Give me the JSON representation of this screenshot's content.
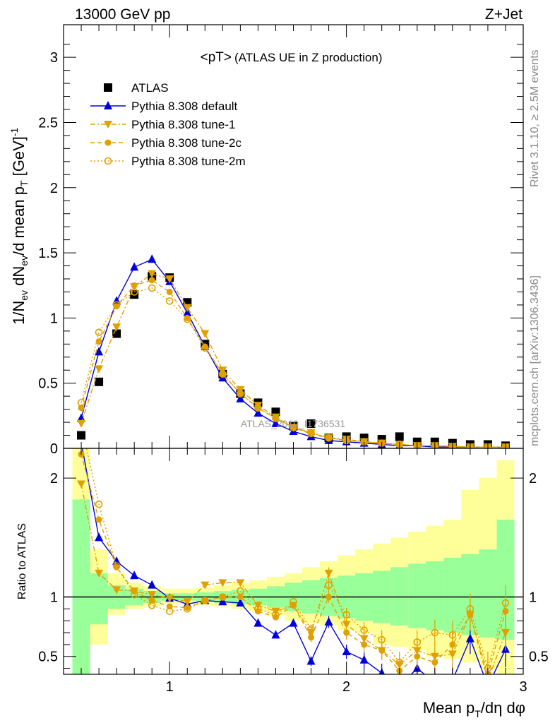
{
  "header": {
    "left": "13000 GeV pp",
    "right": "Z+Jet",
    "side_top": "Rivet 3.1.10, ≥ 2.5M events",
    "side_bottom": "mcplots.cern.ch [arXiv:1306.3436]"
  },
  "chart_data": [
    {
      "type": "scatter",
      "panel": "main",
      "title": "<pT>",
      "subtitle": "(ATLAS UE in Z production)",
      "watermark": "ATLAS_2019_I1736531",
      "xlabel": "Mean p_T/dη dφ",
      "ylabel": "1/N_ev dN_ev/d mean p_T [GeV]^-1",
      "xlim": [
        0.4,
        3.0
      ],
      "ylim": [
        0,
        3.25
      ],
      "x_ticks": [
        "1",
        "2",
        "3"
      ],
      "y_ticks": [
        "0",
        "0.5",
        "1",
        "1.5",
        "2",
        "2.5",
        "3"
      ],
      "x": [
        0.5,
        0.6,
        0.7,
        0.8,
        0.9,
        1.0,
        1.1,
        1.2,
        1.3,
        1.4,
        1.5,
        1.6,
        1.7,
        1.8,
        1.9,
        2.0,
        2.1,
        2.2,
        2.3,
        2.4,
        2.5,
        2.6,
        2.7,
        2.8,
        2.9
      ],
      "legend_position": "top-left",
      "series": [
        {
          "name": "ATLAS",
          "color": "#000000",
          "marker": "square",
          "line": "none",
          "values": [
            0.1,
            0.51,
            0.88,
            1.18,
            1.32,
            1.31,
            1.12,
            0.8,
            0.57,
            0.42,
            0.35,
            0.28,
            0.17,
            0.19,
            0.08,
            0.09,
            0.08,
            0.07,
            0.09,
            0.05,
            0.05,
            0.04,
            0.03,
            0.03,
            0.02
          ]
        },
        {
          "name": "Pythia 8.308 default",
          "color": "#0000dd",
          "marker": "triangle-up",
          "line": "solid",
          "values": [
            0.23,
            0.74,
            1.13,
            1.39,
            1.45,
            1.28,
            1.04,
            0.78,
            0.54,
            0.38,
            0.27,
            0.19,
            0.13,
            0.09,
            0.06,
            0.05,
            0.04,
            0.03,
            0.02,
            0.02,
            0.01,
            0.01,
            0.01,
            0.01,
            0.01
          ]
        },
        {
          "name": "Pythia 8.308 tune-1",
          "color": "#e0a000",
          "marker": "triangle-down",
          "line": "dashdot",
          "values": [
            0.19,
            0.61,
            0.93,
            1.24,
            1.34,
            1.3,
            1.08,
            0.88,
            0.6,
            0.45,
            0.33,
            0.24,
            0.16,
            0.12,
            0.08,
            0.07,
            0.05,
            0.04,
            0.03,
            0.02,
            0.02,
            0.015,
            0.01,
            0.01,
            0.01
          ]
        },
        {
          "name": "Pythia 8.308 tune-2c",
          "color": "#e0a000",
          "marker": "circle",
          "line": "dashed",
          "values": [
            0.31,
            0.82,
            1.09,
            1.25,
            1.29,
            1.2,
            1.0,
            0.78,
            0.57,
            0.42,
            0.31,
            0.23,
            0.16,
            0.11,
            0.08,
            0.06,
            0.05,
            0.04,
            0.03,
            0.02,
            0.02,
            0.015,
            0.01,
            0.01,
            0.01
          ]
        },
        {
          "name": "Pythia 8.308 tune-2m",
          "color": "#e0a000",
          "marker": "open-circle",
          "line": "dotted",
          "values": [
            0.35,
            0.89,
            1.1,
            1.2,
            1.23,
            1.13,
            0.99,
            0.77,
            0.57,
            0.42,
            0.31,
            0.23,
            0.16,
            0.12,
            0.08,
            0.06,
            0.05,
            0.04,
            0.03,
            0.02,
            0.02,
            0.015,
            0.01,
            0.01,
            0.01
          ]
        }
      ]
    },
    {
      "type": "line",
      "panel": "ratio",
      "ylabel": "Ratio to ATLAS",
      "xlim": [
        0.4,
        3.0
      ],
      "ylim": [
        0.35,
        2.25
      ],
      "y_ticks": [
        "0.5",
        "1",
        "2"
      ],
      "x": [
        0.5,
        0.6,
        0.7,
        0.8,
        0.9,
        1.0,
        1.1,
        1.2,
        1.3,
        1.4,
        1.5,
        1.6,
        1.7,
        1.8,
        1.9,
        2.0,
        2.1,
        2.2,
        2.3,
        2.4,
        2.5,
        2.6,
        2.7,
        2.8,
        2.9
      ],
      "bands": {
        "green": {
          "color": "#99ff99",
          "lo": [
            0.3,
            0.77,
            0.9,
            0.93,
            0.95,
            0.97,
            0.97,
            0.96,
            0.95,
            0.94,
            0.93,
            0.91,
            0.88,
            0.86,
            0.84,
            0.82,
            0.8,
            0.78,
            0.76,
            0.74,
            0.72,
            0.7,
            0.68,
            0.66,
            0.64
          ],
          "hi": [
            1.82,
            1.2,
            1.1,
            1.07,
            1.05,
            1.03,
            1.03,
            1.04,
            1.05,
            1.06,
            1.07,
            1.09,
            1.12,
            1.14,
            1.16,
            1.18,
            1.2,
            1.22,
            1.25,
            1.28,
            1.3,
            1.33,
            1.36,
            1.4,
            1.65
          ]
        },
        "yellow": {
          "color": "#ffff99",
          "lo": [
            0.3,
            0.6,
            0.85,
            0.9,
            0.92,
            0.94,
            0.94,
            0.93,
            0.92,
            0.9,
            0.88,
            0.85,
            0.8,
            0.78,
            0.76,
            0.72,
            0.7,
            0.6,
            0.58,
            0.55,
            0.5,
            0.48,
            0.45,
            0.4,
            0.3
          ],
          "hi": [
            2.3,
            1.4,
            1.2,
            1.12,
            1.09,
            1.07,
            1.07,
            1.08,
            1.1,
            1.12,
            1.14,
            1.17,
            1.2,
            1.25,
            1.3,
            1.35,
            1.4,
            1.45,
            1.5,
            1.55,
            1.6,
            1.65,
            1.9,
            2.0,
            2.15
          ]
        }
      },
      "series": [
        {
          "name": "Pythia 8.308 default",
          "values": [
            2.3,
            1.5,
            1.3,
            1.18,
            1.1,
            0.99,
            0.94,
            0.97,
            0.96,
            0.95,
            0.78,
            0.68,
            0.78,
            0.46,
            0.79,
            0.54,
            0.47,
            0.36,
            0.25,
            0.4,
            0.28,
            0.3,
            0.65,
            0.25,
            0.56
          ]
        },
        {
          "name": "Pythia 8.308 tune-1",
          "values": [
            1.95,
            1.2,
            1.06,
            1.05,
            1.02,
            0.99,
            0.96,
            1.1,
            1.12,
            1.12,
            0.93,
            0.88,
            0.93,
            0.7,
            1.2,
            0.77,
            0.65,
            0.55,
            0.43,
            0.55,
            0.5,
            0.52,
            0.85,
            0.3,
            0.7
          ]
        },
        {
          "name": "Pythia 8.308 tune-2c",
          "values": [
            2.2,
            1.65,
            1.25,
            1.05,
            0.97,
            0.92,
            0.91,
            0.97,
            1.0,
            1.0,
            0.88,
            0.83,
            0.93,
            0.66,
            1.0,
            0.7,
            0.6,
            0.55,
            0.38,
            0.5,
            0.45,
            0.6,
            0.85,
            0.35,
            0.88
          ]
        },
        {
          "name": "Pythia 8.308 tune-2m",
          "values": [
            2.45,
            1.78,
            1.26,
            1.02,
            0.93,
            0.88,
            0.9,
            0.97,
            1.0,
            1.05,
            0.9,
            0.85,
            0.96,
            0.73,
            1.1,
            0.85,
            0.72,
            0.64,
            0.45,
            0.62,
            0.7,
            0.68,
            0.9,
            0.4,
            0.95
          ]
        }
      ]
    }
  ]
}
